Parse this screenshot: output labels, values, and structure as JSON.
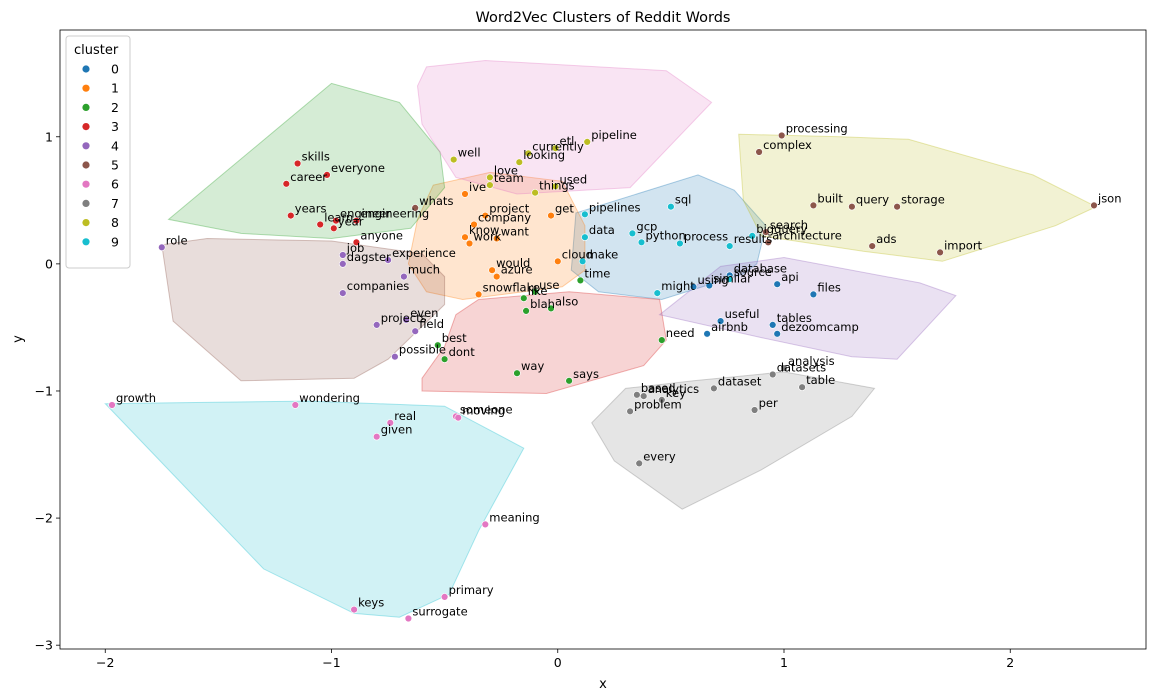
{
  "chart_data": {
    "type": "scatter",
    "title": "Word2Vec Clusters of Reddit Words",
    "xlabel": "x",
    "ylabel": "y",
    "xlim": [
      -2.2,
      2.6
    ],
    "ylim": [
      -3.03,
      1.84
    ],
    "xticks": [
      -2,
      -1,
      0,
      1,
      2
    ],
    "yticks": [
      -3,
      -2,
      -1,
      0,
      1
    ],
    "legend": {
      "title": "cluster",
      "position": "top-left"
    },
    "grid": false,
    "clusters": [
      {
        "name": "0",
        "color": "#1f77b4",
        "region_color": "#1f77b4",
        "region_opacity": 0.2,
        "hull": [
          [
            0.08,
            0.4
          ],
          [
            0.62,
            0.7
          ],
          [
            0.78,
            0.58
          ],
          [
            0.92,
            0.3
          ],
          [
            0.88,
            0.0
          ],
          [
            0.82,
            -0.08
          ],
          [
            0.46,
            -0.28
          ],
          [
            0.18,
            -0.22
          ],
          [
            0.06,
            -0.05
          ]
        ],
        "points": [
          {
            "label": "using",
            "x": 0.6,
            "y": -0.18
          },
          {
            "label": "similar",
            "x": 0.67,
            "y": -0.17
          },
          {
            "label": "database",
            "x": 0.76,
            "y": -0.09
          },
          {
            "label": "api",
            "x": 0.97,
            "y": -0.16
          },
          {
            "label": "files",
            "x": 1.13,
            "y": -0.24
          },
          {
            "label": "useful",
            "x": 0.72,
            "y": -0.45
          },
          {
            "label": "tables",
            "x": 0.95,
            "y": -0.48
          },
          {
            "label": "dezoomcamp",
            "x": 0.97,
            "y": -0.55
          },
          {
            "label": "airbnb",
            "x": 0.66,
            "y": -0.55
          }
        ]
      },
      {
        "name": "1",
        "color": "#ff7f0e",
        "region_color": "#ff7f0e",
        "region_opacity": 0.2,
        "hull": [
          [
            -0.55,
            0.62
          ],
          [
            -0.3,
            0.72
          ],
          [
            0.02,
            0.65
          ],
          [
            0.12,
            0.3
          ],
          [
            0.12,
            -0.05
          ],
          [
            0.02,
            -0.18
          ],
          [
            -0.42,
            -0.28
          ],
          [
            -0.58,
            -0.22
          ],
          [
            -0.66,
            0.0
          ],
          [
            -0.62,
            0.35
          ]
        ],
        "points": [
          {
            "label": "ive",
            "x": -0.41,
            "y": 0.55
          },
          {
            "label": "project",
            "x": -0.32,
            "y": 0.38
          },
          {
            "label": "company",
            "x": -0.37,
            "y": 0.31
          },
          {
            "label": "get",
            "x": -0.03,
            "y": 0.38
          },
          {
            "label": "know",
            "x": -0.41,
            "y": 0.21
          },
          {
            "label": "want",
            "x": -0.27,
            "y": 0.2
          },
          {
            "label": "work",
            "x": -0.39,
            "y": 0.16
          },
          {
            "label": "would",
            "x": -0.29,
            "y": -0.05
          },
          {
            "label": "azure",
            "x": -0.27,
            "y": -0.1
          },
          {
            "label": "cloud",
            "x": 0.0,
            "y": 0.02
          },
          {
            "label": "snowflake",
            "x": -0.35,
            "y": -0.24
          }
        ]
      },
      {
        "name": "2",
        "color": "#2ca02c",
        "region_color": "#2ca02c",
        "region_opacity": 0.2,
        "hull": [
          [
            -1.72,
            0.35
          ],
          [
            -1.0,
            1.42
          ],
          [
            -0.7,
            1.27
          ],
          [
            -0.52,
            0.88
          ],
          [
            -0.5,
            0.6
          ],
          [
            -0.65,
            0.28
          ],
          [
            -1.0,
            0.2
          ],
          [
            -1.4,
            0.24
          ]
        ],
        "points": [
          {
            "label": "use",
            "x": -0.1,
            "y": -0.22
          },
          {
            "label": "like",
            "x": -0.15,
            "y": -0.27
          },
          {
            "label": "also",
            "x": -0.03,
            "y": -0.35
          },
          {
            "label": "blah",
            "x": -0.14,
            "y": -0.37
          },
          {
            "label": "time",
            "x": 0.1,
            "y": -0.13
          },
          {
            "label": "need",
            "x": 0.46,
            "y": -0.6
          },
          {
            "label": "best",
            "x": -0.53,
            "y": -0.64
          },
          {
            "label": "dont",
            "x": -0.5,
            "y": -0.75
          },
          {
            "label": "way",
            "x": -0.18,
            "y": -0.86
          },
          {
            "label": "says",
            "x": 0.05,
            "y": -0.92
          }
        ]
      },
      {
        "name": "3",
        "color": "#d62728",
        "region_color": "#d62728",
        "region_opacity": 0.2,
        "hull": [
          [
            -0.45,
            -0.4
          ],
          [
            -0.35,
            -0.28
          ],
          [
            0.05,
            -0.22
          ],
          [
            0.45,
            -0.28
          ],
          [
            0.48,
            -0.6
          ],
          [
            0.38,
            -0.8
          ],
          [
            -0.05,
            -1.02
          ],
          [
            -0.6,
            -1.0
          ],
          [
            -0.6,
            -0.9
          ],
          [
            -0.5,
            -0.65
          ]
        ],
        "points": [
          {
            "label": "skills",
            "x": -1.15,
            "y": 0.79
          },
          {
            "label": "everyone",
            "x": -1.02,
            "y": 0.7
          },
          {
            "label": "career",
            "x": -1.2,
            "y": 0.63
          },
          {
            "label": "engineer",
            "x": -0.98,
            "y": 0.34
          },
          {
            "label": "years",
            "x": -1.18,
            "y": 0.38
          },
          {
            "label": "learn",
            "x": -1.05,
            "y": 0.31
          },
          {
            "label": "engineering",
            "x": -0.89,
            "y": 0.34
          },
          {
            "label": "year",
            "x": -0.99,
            "y": 0.28
          },
          {
            "label": "anyone",
            "x": -0.89,
            "y": 0.17
          }
        ]
      },
      {
        "name": "4",
        "color": "#9467bd",
        "region_color": "#9467bd",
        "region_opacity": 0.2,
        "hull": [
          [
            0.45,
            -0.4
          ],
          [
            0.72,
            -0.02
          ],
          [
            1.0,
            0.05
          ],
          [
            1.6,
            -0.15
          ],
          [
            1.76,
            -0.25
          ],
          [
            1.5,
            -0.75
          ],
          [
            1.3,
            -0.73
          ],
          [
            0.9,
            -0.58
          ]
        ],
        "points": [
          {
            "label": "role",
            "x": -1.75,
            "y": 0.13
          },
          {
            "label": "job",
            "x": -0.95,
            "y": 0.07
          },
          {
            "label": "experience",
            "x": -0.75,
            "y": 0.03
          },
          {
            "label": "dagster",
            "x": -0.95,
            "y": 0.0
          },
          {
            "label": "much",
            "x": -0.68,
            "y": -0.1
          },
          {
            "label": "companies",
            "x": -0.95,
            "y": -0.23
          },
          {
            "label": "projects",
            "x": -0.8,
            "y": -0.48
          },
          {
            "label": "even",
            "x": -0.67,
            "y": -0.44
          },
          {
            "label": "field",
            "x": -0.63,
            "y": -0.53
          },
          {
            "label": "possible",
            "x": -0.72,
            "y": -0.73
          }
        ]
      },
      {
        "name": "5",
        "color": "#8c564b",
        "region_color": "#8c564b",
        "region_opacity": 0.2,
        "hull": [
          [
            -1.7,
            -0.45
          ],
          [
            -1.75,
            0.15
          ],
          [
            -1.55,
            0.2
          ],
          [
            -1.0,
            0.18
          ],
          [
            -0.6,
            0.08
          ],
          [
            -0.5,
            -0.1
          ],
          [
            -0.5,
            -0.32
          ],
          [
            -0.75,
            -0.75
          ],
          [
            -0.9,
            -0.9
          ],
          [
            -1.4,
            -0.92
          ]
        ],
        "points": [
          {
            "label": "processing",
            "x": 0.99,
            "y": 1.01
          },
          {
            "label": "complex",
            "x": 0.89,
            "y": 0.88
          },
          {
            "label": "built",
            "x": 1.13,
            "y": 0.46
          },
          {
            "label": "query",
            "x": 1.3,
            "y": 0.45
          },
          {
            "label": "storage",
            "x": 1.5,
            "y": 0.45
          },
          {
            "label": "json",
            "x": 2.37,
            "y": 0.46
          },
          {
            "label": "search",
            "x": 0.92,
            "y": 0.25
          },
          {
            "label": "architecture",
            "x": 0.93,
            "y": 0.17
          },
          {
            "label": "ads",
            "x": 1.39,
            "y": 0.14
          },
          {
            "label": "import",
            "x": 1.69,
            "y": 0.09
          },
          {
            "label": "whats",
            "x": -0.63,
            "y": 0.44
          }
        ]
      },
      {
        "name": "6",
        "color": "#e377c2",
        "region_color": "#e377c2",
        "region_opacity": 0.2,
        "hull": [
          [
            -0.58,
            1.55
          ],
          [
            -0.32,
            1.6
          ],
          [
            0.48,
            1.52
          ],
          [
            0.68,
            1.27
          ],
          [
            0.32,
            0.6
          ],
          [
            -0.18,
            0.55
          ],
          [
            -0.45,
            0.68
          ],
          [
            -0.6,
            1.1
          ],
          [
            -0.62,
            1.4
          ]
        ],
        "points": [
          {
            "label": "growth",
            "x": -1.97,
            "y": -1.11
          },
          {
            "label": "wondering",
            "x": -1.16,
            "y": -1.11
          },
          {
            "label": "real",
            "x": -0.74,
            "y": -1.25
          },
          {
            "label": "given",
            "x": -0.8,
            "y": -1.36
          },
          {
            "label": "someone",
            "x": -0.45,
            "y": -1.2
          },
          {
            "label": "moving",
            "x": -0.44,
            "y": -1.21
          },
          {
            "label": "meaning",
            "x": -0.32,
            "y": -2.05
          },
          {
            "label": "primary",
            "x": -0.5,
            "y": -2.62
          },
          {
            "label": "keys",
            "x": -0.9,
            "y": -2.72
          },
          {
            "label": "surrogate",
            "x": -0.66,
            "y": -2.79
          }
        ]
      },
      {
        "name": "7",
        "color": "#7f7f7f",
        "region_color": "#7f7f7f",
        "region_opacity": 0.2,
        "hull": [
          [
            0.15,
            -1.25
          ],
          [
            0.3,
            -0.98
          ],
          [
            0.6,
            -0.92
          ],
          [
            1.0,
            -0.85
          ],
          [
            1.4,
            -0.98
          ],
          [
            1.3,
            -1.2
          ],
          [
            0.9,
            -1.62
          ],
          [
            0.55,
            -1.93
          ],
          [
            0.25,
            -1.55
          ]
        ],
        "points": [
          {
            "label": "based",
            "x": 0.35,
            "y": -1.03
          },
          {
            "label": "analytics",
            "x": 0.38,
            "y": -1.04
          },
          {
            "label": "dataset",
            "x": 0.69,
            "y": -0.98
          },
          {
            "label": "key",
            "x": 0.46,
            "y": -1.07
          },
          {
            "label": "analysis",
            "x": 1.0,
            "y": -0.82
          },
          {
            "label": "datasets",
            "x": 0.95,
            "y": -0.87
          },
          {
            "label": "table",
            "x": 1.08,
            "y": -0.97
          },
          {
            "label": "problem",
            "x": 0.32,
            "y": -1.16
          },
          {
            "label": "per",
            "x": 0.87,
            "y": -1.15
          },
          {
            "label": "every",
            "x": 0.36,
            "y": -1.57
          }
        ]
      },
      {
        "name": "8",
        "color": "#bcbd22",
        "region_color": "#bcbd22",
        "region_opacity": 0.2,
        "hull": [
          [
            0.8,
            1.02
          ],
          [
            1.25,
            1.0
          ],
          [
            1.55,
            0.98
          ],
          [
            2.1,
            0.7
          ],
          [
            2.38,
            0.45
          ],
          [
            2.2,
            0.3
          ],
          [
            1.7,
            0.02
          ],
          [
            1.35,
            0.1
          ],
          [
            0.9,
            0.22
          ],
          [
            0.82,
            0.5
          ]
        ],
        "points": [
          {
            "label": "etl",
            "x": -0.01,
            "y": 0.91
          },
          {
            "label": "pipeline",
            "x": 0.13,
            "y": 0.96
          },
          {
            "label": "well",
            "x": -0.46,
            "y": 0.82
          },
          {
            "label": "currently",
            "x": -0.13,
            "y": 0.87
          },
          {
            "label": "looking",
            "x": -0.17,
            "y": 0.8
          },
          {
            "label": "love",
            "x": -0.3,
            "y": 0.68
          },
          {
            "label": "team",
            "x": -0.3,
            "y": 0.62
          },
          {
            "label": "things",
            "x": -0.1,
            "y": 0.56
          },
          {
            "label": "used",
            "x": -0.01,
            "y": 0.61
          }
        ]
      },
      {
        "name": "9",
        "color": "#17becf",
        "region_color": "#17becf",
        "region_opacity": 0.2,
        "hull": [
          [
            -2.0,
            -1.1
          ],
          [
            -1.1,
            -1.08
          ],
          [
            -0.5,
            -1.12
          ],
          [
            -0.15,
            -1.45
          ],
          [
            -0.35,
            -2.1
          ],
          [
            -0.48,
            -2.6
          ],
          [
            -0.7,
            -2.78
          ],
          [
            -0.9,
            -2.75
          ],
          [
            -1.3,
            -2.4
          ]
        ],
        "points": [
          {
            "label": "sql",
            "x": 0.5,
            "y": 0.45
          },
          {
            "label": "pipelines",
            "x": 0.12,
            "y": 0.39
          },
          {
            "label": "data",
            "x": 0.12,
            "y": 0.21
          },
          {
            "label": "gcp",
            "x": 0.33,
            "y": 0.24
          },
          {
            "label": "python",
            "x": 0.37,
            "y": 0.17
          },
          {
            "label": "process",
            "x": 0.54,
            "y": 0.16
          },
          {
            "label": "bigquery",
            "x": 0.86,
            "y": 0.22
          },
          {
            "label": "results",
            "x": 0.76,
            "y": 0.14
          },
          {
            "label": "make",
            "x": 0.11,
            "y": 0.02
          },
          {
            "label": "source",
            "x": 0.76,
            "y": -0.12
          },
          {
            "label": "might",
            "x": 0.44,
            "y": -0.23
          }
        ]
      }
    ]
  }
}
